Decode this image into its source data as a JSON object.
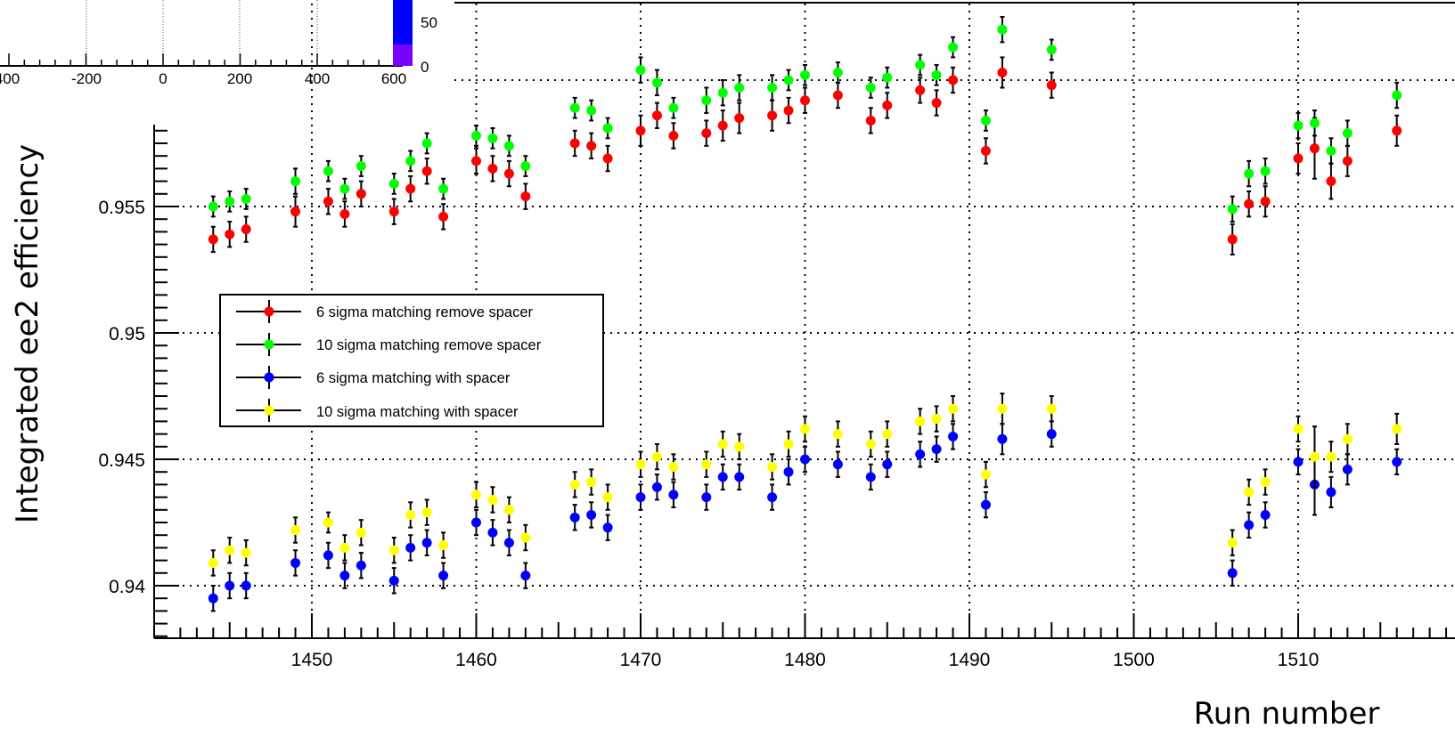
{
  "chart_data": [
    {
      "type": "scatter",
      "xlabel": "Run number",
      "ylabel": "Integrated ee2 efficiency",
      "xticks": [
        "1450",
        "1460",
        "1470",
        "1480",
        "1490",
        "1500",
        "1510"
      ],
      "yticks": [
        "0.94",
        "0.945",
        "0.95",
        "0.955"
      ],
      "xlim": [
        1441,
        1520
      ],
      "ylim": [
        0.938,
        0.9605
      ],
      "grid": true,
      "error_bars": true,
      "legend_position": "left",
      "series": [
        {
          "name": "6 sigma matching remove spacer",
          "color": "#ff0000",
          "x": [
            1444,
            1445,
            1446,
            1449,
            1451,
            1452,
            1453,
            1455,
            1456,
            1457,
            1458,
            1460,
            1461,
            1462,
            1463,
            1466,
            1467,
            1468,
            1470,
            1471,
            1472,
            1474,
            1475,
            1476,
            1478,
            1479,
            1480,
            1482,
            1484,
            1485,
            1487,
            1488,
            1489,
            1491,
            1492,
            1495,
            1506,
            1507,
            1508,
            1510,
            1511,
            1512,
            1513,
            1516
          ],
          "y": [
            0.9537,
            0.9539,
            0.9541,
            0.9548,
            0.9552,
            0.9547,
            0.9555,
            0.9548,
            0.9557,
            0.9564,
            0.9546,
            0.9568,
            0.9565,
            0.9563,
            0.9554,
            0.9575,
            0.9574,
            0.9569,
            0.958,
            0.9586,
            0.9578,
            0.9579,
            0.9582,
            0.9585,
            0.9586,
            0.9588,
            0.9592,
            0.9594,
            0.9584,
            0.959,
            0.9596,
            0.9591,
            0.96,
            0.9572,
            0.9603,
            0.9598,
            0.9537,
            0.9551,
            0.9552,
            0.9569,
            0.9573,
            0.956,
            0.9568,
            0.958
          ],
          "err": [
            0.0005,
            0.0005,
            0.0005,
            0.0006,
            0.0005,
            0.0005,
            0.0005,
            0.0005,
            0.0005,
            0.0005,
            0.0005,
            0.0005,
            0.0005,
            0.0005,
            0.0005,
            0.0005,
            0.0005,
            0.0005,
            0.0006,
            0.0005,
            0.0005,
            0.0005,
            0.0006,
            0.0006,
            0.0006,
            0.0005,
            0.0005,
            0.0005,
            0.0005,
            0.0005,
            0.0005,
            0.0005,
            0.0005,
            0.0005,
            0.0006,
            0.0005,
            0.0006,
            0.0005,
            0.0006,
            0.0006,
            0.0012,
            0.0007,
            0.0006,
            0.0006
          ]
        },
        {
          "name": "10 sigma matching remove spacer",
          "color": "#00ff00",
          "x": [
            1444,
            1445,
            1446,
            1449,
            1451,
            1452,
            1453,
            1455,
            1456,
            1457,
            1458,
            1460,
            1461,
            1462,
            1463,
            1466,
            1467,
            1468,
            1470,
            1471,
            1472,
            1474,
            1475,
            1476,
            1478,
            1479,
            1480,
            1482,
            1484,
            1485,
            1487,
            1488,
            1489,
            1491,
            1492,
            1495,
            1506,
            1507,
            1508,
            1510,
            1511,
            1512,
            1513,
            1516
          ],
          "y": [
            0.955,
            0.9552,
            0.9553,
            0.956,
            0.9564,
            0.9557,
            0.9566,
            0.9559,
            0.9568,
            0.9575,
            0.9557,
            0.9578,
            0.9577,
            0.9574,
            0.9566,
            0.9589,
            0.9588,
            0.9581,
            0.9604,
            0.9599,
            0.9589,
            0.9592,
            0.9595,
            0.9597,
            0.9597,
            0.96,
            0.9602,
            0.9603,
            0.9597,
            0.9601,
            0.9606,
            0.9602,
            0.9613,
            0.9584,
            0.962,
            0.9612,
            0.9549,
            0.9563,
            0.9564,
            0.9582,
            0.9583,
            0.9572,
            0.9579,
            0.9594
          ],
          "err": [
            0.0004,
            0.0004,
            0.0004,
            0.0005,
            0.0004,
            0.0004,
            0.0004,
            0.0004,
            0.0004,
            0.0004,
            0.0004,
            0.0004,
            0.0004,
            0.0004,
            0.0004,
            0.0004,
            0.0004,
            0.0004,
            0.0005,
            0.0005,
            0.0004,
            0.0005,
            0.0005,
            0.0005,
            0.0005,
            0.0004,
            0.0004,
            0.0004,
            0.0004,
            0.0004,
            0.0004,
            0.0004,
            0.0004,
            0.0004,
            0.0005,
            0.0004,
            0.0005,
            0.0005,
            0.0005,
            0.0005,
            0.0005,
            0.0005,
            0.0005,
            0.0005
          ]
        },
        {
          "name": "6 sigma matching with spacer",
          "color": "#0000ff",
          "x": [
            1444,
            1445,
            1446,
            1449,
            1451,
            1452,
            1453,
            1455,
            1456,
            1457,
            1458,
            1460,
            1461,
            1462,
            1463,
            1466,
            1467,
            1468,
            1470,
            1471,
            1472,
            1474,
            1475,
            1476,
            1478,
            1479,
            1480,
            1482,
            1484,
            1485,
            1487,
            1488,
            1489,
            1491,
            1492,
            1495,
            1506,
            1507,
            1508,
            1510,
            1511,
            1512,
            1513,
            1516
          ],
          "y": [
            0.9395,
            0.94,
            0.94,
            0.9409,
            0.9412,
            0.9404,
            0.9408,
            0.9402,
            0.9415,
            0.9417,
            0.9404,
            0.9425,
            0.9421,
            0.9417,
            0.9404,
            0.9427,
            0.9428,
            0.9423,
            0.9435,
            0.9439,
            0.9436,
            0.9435,
            0.9443,
            0.9443,
            0.9435,
            0.9445,
            0.945,
            0.9448,
            0.9443,
            0.9448,
            0.9452,
            0.9454,
            0.9459,
            0.9432,
            0.9458,
            0.946,
            0.9405,
            0.9424,
            0.9428,
            0.9449,
            0.944,
            0.9437,
            0.9446,
            0.9449
          ],
          "err": [
            0.0005,
            0.0005,
            0.0005,
            0.0005,
            0.0005,
            0.0005,
            0.0005,
            0.0005,
            0.0005,
            0.0005,
            0.0005,
            0.0005,
            0.0005,
            0.0005,
            0.0005,
            0.0005,
            0.0005,
            0.0005,
            0.0005,
            0.0005,
            0.0005,
            0.0005,
            0.0005,
            0.0005,
            0.0005,
            0.0005,
            0.0005,
            0.0005,
            0.0005,
            0.0005,
            0.0005,
            0.0005,
            0.0005,
            0.0005,
            0.0006,
            0.0005,
            0.0005,
            0.0005,
            0.0005,
            0.0005,
            0.0012,
            0.0006,
            0.0006,
            0.0005
          ]
        },
        {
          "name": "10 sigma matching with spacer",
          "color": "#ffff00",
          "x": [
            1444,
            1445,
            1446,
            1449,
            1451,
            1452,
            1453,
            1455,
            1456,
            1457,
            1458,
            1460,
            1461,
            1462,
            1463,
            1466,
            1467,
            1468,
            1470,
            1471,
            1472,
            1474,
            1475,
            1476,
            1478,
            1479,
            1480,
            1482,
            1484,
            1485,
            1487,
            1488,
            1489,
            1491,
            1492,
            1495,
            1506,
            1507,
            1508,
            1510,
            1511,
            1512,
            1513,
            1516
          ],
          "y": [
            0.9409,
            0.9414,
            0.9413,
            0.9422,
            0.9425,
            0.9415,
            0.9421,
            0.9414,
            0.9428,
            0.9429,
            0.9416,
            0.9436,
            0.9434,
            0.943,
            0.9419,
            0.944,
            0.9441,
            0.9435,
            0.9448,
            0.9451,
            0.9447,
            0.9448,
            0.9456,
            0.9455,
            0.9447,
            0.9456,
            0.9462,
            0.946,
            0.9456,
            0.946,
            0.9465,
            0.9466,
            0.947,
            0.9444,
            0.947,
            0.947,
            0.9417,
            0.9437,
            0.9441,
            0.9462,
            0.9451,
            0.9451,
            0.9458,
            0.9462
          ],
          "err": [
            0.0005,
            0.0005,
            0.0005,
            0.0005,
            0.0004,
            0.0005,
            0.0005,
            0.0005,
            0.0005,
            0.0005,
            0.0005,
            0.0005,
            0.0005,
            0.0005,
            0.0005,
            0.0005,
            0.0005,
            0.0005,
            0.0005,
            0.0005,
            0.0005,
            0.0005,
            0.0005,
            0.0005,
            0.0005,
            0.0005,
            0.0005,
            0.0005,
            0.0005,
            0.0005,
            0.0005,
            0.0005,
            0.0005,
            0.0005,
            0.0006,
            0.0005,
            0.0005,
            0.0005,
            0.0005,
            0.0005,
            0.0012,
            0.0006,
            0.0006,
            0.0006
          ]
        }
      ]
    },
    {
      "type": "heatmap",
      "xticks": [
        "400",
        "-200",
        "0",
        "200",
        "400",
        "600"
      ],
      "colorbar_ticks": [
        "50",
        "0"
      ],
      "colorbar_colors": [
        "#0000ff",
        "#7a00ff"
      ],
      "grid": true
    }
  ]
}
